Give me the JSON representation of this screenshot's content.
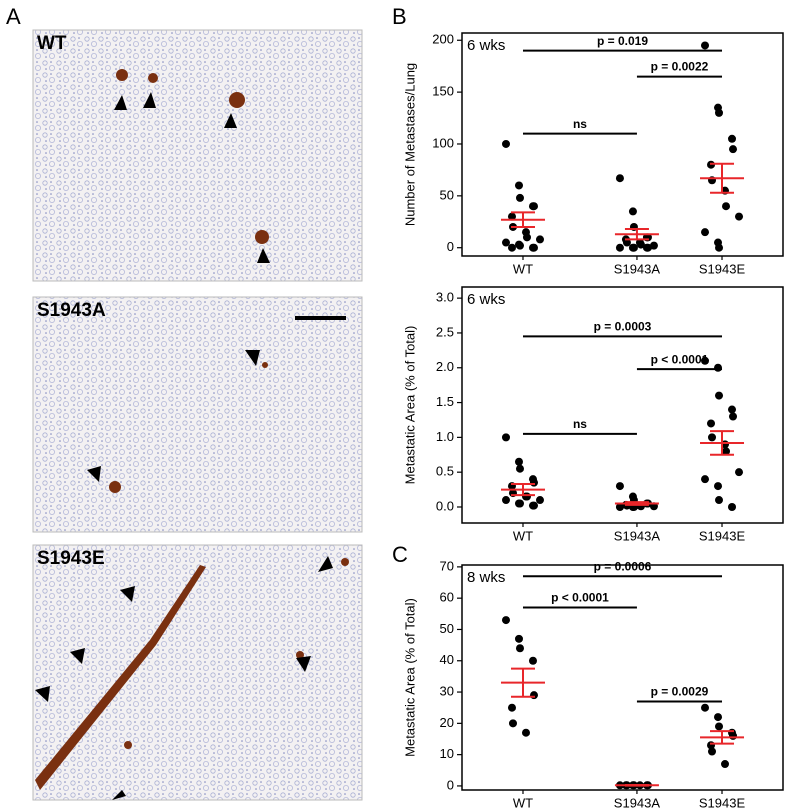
{
  "panels": {
    "letters": [
      "A",
      "B",
      "C"
    ],
    "images": [
      {
        "label": "WT"
      },
      {
        "label": "S1943A"
      },
      {
        "label": "S1943E"
      }
    ]
  },
  "chart_data": [
    {
      "type": "dotplot",
      "inset": "6 wks",
      "ylabel": "Number of Metastases/Lung",
      "categories": [
        "WT",
        "S1943A",
        "S1943E"
      ],
      "groups": [
        [
          100,
          60,
          48,
          40,
          40,
          30,
          20,
          15,
          10,
          8,
          5,
          3,
          2,
          0,
          0,
          0
        ],
        [
          67,
          35,
          20,
          10,
          10,
          8,
          5,
          5,
          3,
          2,
          0,
          0,
          0,
          0,
          0
        ],
        [
          195,
          135,
          130,
          105,
          95,
          80,
          65,
          55,
          40,
          30,
          15,
          5,
          0
        ]
      ],
      "means": [
        27,
        13,
        67
      ],
      "sem": [
        7,
        5,
        14
      ],
      "point_color": "#000000",
      "mean_color": "#e8262a",
      "ylim": [
        -8,
        207
      ],
      "yticks": [
        0,
        50,
        100,
        150,
        200
      ],
      "comparisons": [
        {
          "from": 0,
          "to": 1,
          "y": 110,
          "label": "ns"
        },
        {
          "from": 0,
          "to": 2,
          "y": 190,
          "label": "p = 0.019"
        },
        {
          "from": 1,
          "to": 2,
          "y": 165,
          "label": "p = 0.0022"
        }
      ]
    },
    {
      "type": "dotplot",
      "inset": "6 wks",
      "ylabel": "Metastatic Area (% of Total)",
      "categories": [
        "WT",
        "S1943A",
        "S1943E"
      ],
      "groups": [
        [
          1.0,
          0.65,
          0.55,
          0.4,
          0.35,
          0.3,
          0.2,
          0.15,
          0.15,
          0.1,
          0.1,
          0.05,
          0.05,
          0.02,
          0.02
        ],
        [
          0.3,
          0.15,
          0.1,
          0.05,
          0.05,
          0.03,
          0.02,
          0.02,
          0.01,
          0.01,
          0.0,
          0.0,
          0.0
        ],
        [
          2.1,
          2.0,
          1.6,
          1.4,
          1.3,
          1.2,
          1.0,
          0.9,
          0.8,
          0.5,
          0.4,
          0.3,
          0.1,
          0.0
        ]
      ],
      "means": [
        0.25,
        0.05,
        0.92
      ],
      "sem": [
        0.08,
        0.02,
        0.17
      ],
      "point_color": "#000000",
      "mean_color": "#e8262a",
      "ylim": [
        -0.23,
        3.16
      ],
      "yticks": [
        {
          "value": 0,
          "label": "0.0"
        },
        0.5,
        {
          "value": 1,
          "label": "1.0"
        },
        1.5,
        {
          "value": 2,
          "label": "2.0"
        },
        2.5,
        {
          "value": 3,
          "label": "3.0"
        }
      ],
      "comparisons": [
        {
          "from": 0,
          "to": 1,
          "y": 1.05,
          "label": "ns"
        },
        {
          "from": 0,
          "to": 2,
          "y": 2.45,
          "label": "p = 0.0003"
        },
        {
          "from": 1,
          "to": 2,
          "y": 1.98,
          "label": "p < 0.0001"
        }
      ]
    },
    {
      "type": "dotplot",
      "inset": "8 wks",
      "ylabel": "Metastatic Area (% of Total)",
      "categories": [
        "WT",
        "S1943A",
        "S1943E"
      ],
      "groups": [
        [
          53,
          47,
          44,
          40,
          29,
          25,
          20,
          17
        ],
        [
          0.2,
          0.2,
          0.2,
          0.2,
          0.2,
          0.2,
          0.2,
          0.2
        ],
        [
          25,
          22,
          19,
          17,
          16,
          13,
          11,
          7
        ]
      ],
      "means": [
        33,
        0.2,
        15.5
      ],
      "sem": [
        4.5,
        0.1,
        2
      ],
      "point_color": "#000000",
      "mean_color": "#e8262a",
      "ylim": [
        -1.3,
        70.6
      ],
      "yticks": [
        0,
        10,
        20,
        30,
        40,
        50,
        60,
        70
      ],
      "comparisons": [
        {
          "from": 0,
          "to": 1,
          "y": 57,
          "label": "p < 0.0001"
        },
        {
          "from": 0,
          "to": 2,
          "y": 67,
          "label": "p = 0.0006"
        },
        {
          "from": 1,
          "to": 2,
          "y": 27,
          "label": "p = 0.0029"
        }
      ]
    }
  ]
}
